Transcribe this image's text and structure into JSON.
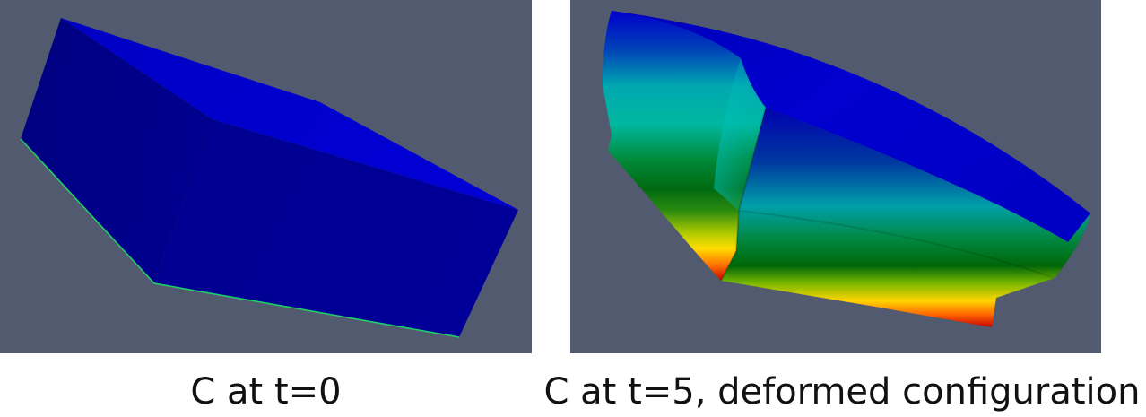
{
  "panels": [
    {
      "caption": "C at t=0",
      "view_background": "#525a70",
      "object_colors": [
        "#00008b",
        "#0000c8",
        "#00ff55"
      ]
    },
    {
      "caption": "C at t=5, deformed configuration",
      "view_background": "#525a70",
      "object_colors": [
        "#0000cc",
        "#00b8b8",
        "#006600",
        "#ffdd00",
        "#cc0000"
      ]
    }
  ]
}
